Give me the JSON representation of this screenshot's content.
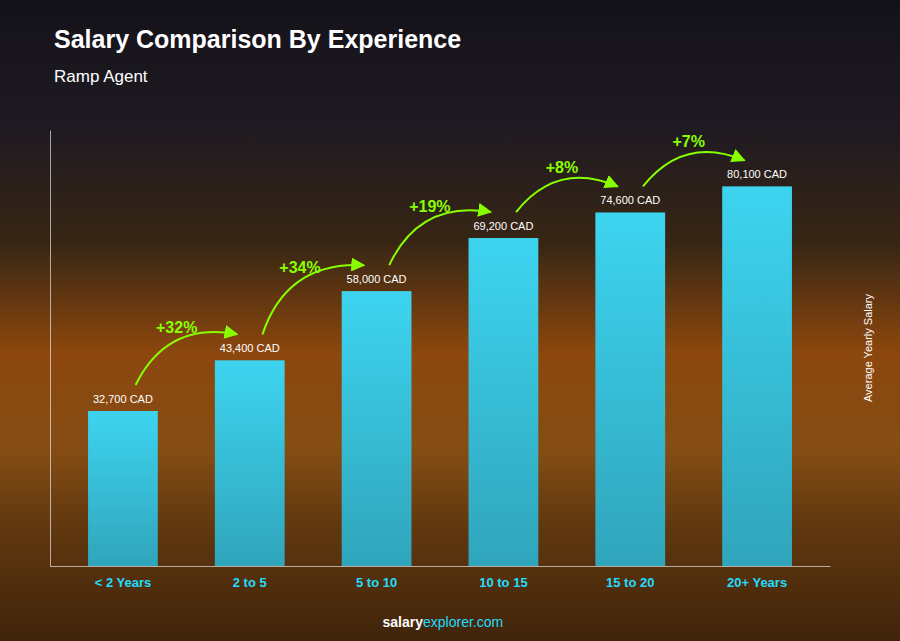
{
  "chart_data": {
    "type": "bar",
    "title": "Salary Comparison By Experience",
    "subtitle": "Ramp Agent",
    "categories": [
      "< 2 Years",
      "2 to 5",
      "5 to 10",
      "10 to 15",
      "15 to 20",
      "20+ Years"
    ],
    "values": [
      32700,
      43400,
      58000,
      69200,
      74600,
      80100
    ],
    "value_labels": [
      "32,700 CAD",
      "43,400 CAD",
      "58,000 CAD",
      "69,200 CAD",
      "74,600 CAD",
      "80,100 CAD"
    ],
    "data_labels": true,
    "color": "#3dd4f0",
    "ylabel": "Average Yearly Salary",
    "ylim": [
      0,
      92000
    ],
    "tick_labels": "x",
    "grid": false,
    "annotations": [
      "+32%",
      "+34%",
      "+19%",
      "+8%",
      "+7%"
    ],
    "footer": [
      "salary",
      "explorer.com"
    ]
  }
}
